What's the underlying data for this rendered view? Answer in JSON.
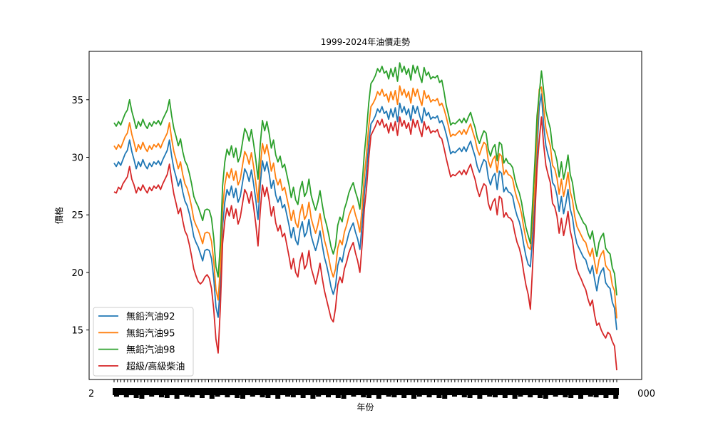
{
  "chart_data": {
    "type": "line",
    "title": "1999-2024年油價走勢",
    "xlabel": "年份",
    "ylabel": "價格",
    "ylim": [
      10.7,
      39.2
    ],
    "yticks": [
      15,
      20,
      25,
      30,
      35
    ],
    "x_tick_edge_labels": [
      "2",
      "000"
    ],
    "x_tick_count": 150,
    "legend_position": "lower-left",
    "grid": false,
    "series": [
      {
        "name": "無鉛汽油92",
        "color": "#1f77b4",
        "values": [
          29.5,
          29.2,
          29.6,
          29.3,
          29.8,
          30.3,
          30.6,
          31.5,
          30.5,
          29.8,
          29.0,
          29.6,
          29.2,
          29.8,
          29.3,
          29.0,
          29.5,
          29.2,
          29.6,
          29.4,
          29.7,
          29.3,
          29.8,
          30.2,
          30.6,
          31.5,
          30.1,
          29.0,
          28.3,
          27.5,
          28.1,
          27.0,
          26.2,
          25.8,
          25.1,
          24.2,
          23.1,
          22.6,
          22.2,
          21.6,
          21.0,
          21.9,
          22.0,
          21.9,
          21.2,
          19.5,
          17.0,
          16.1,
          19.0,
          24.0,
          26.1,
          27.2,
          26.7,
          27.5,
          26.5,
          27.3,
          26.1,
          26.6,
          27.8,
          29.0,
          28.6,
          27.9,
          28.9,
          27.7,
          26.3,
          24.6,
          27.6,
          29.7,
          28.8,
          29.6,
          28.6,
          27.3,
          28.0,
          26.7,
          26.1,
          26.6,
          25.6,
          25.9,
          25.0,
          24.1,
          23.0,
          23.9,
          22.8,
          22.4,
          23.7,
          24.4,
          23.1,
          23.5,
          24.6,
          23.2,
          22.5,
          21.9,
          22.6,
          23.6,
          22.4,
          21.3,
          20.6,
          19.7,
          18.7,
          18.1,
          18.8,
          20.6,
          21.3,
          20.9,
          22.0,
          22.6,
          23.4,
          23.9,
          24.3,
          23.5,
          22.9,
          22.0,
          24.1,
          26.8,
          28.8,
          31.2,
          32.9,
          33.2,
          33.6,
          34.2,
          33.9,
          34.4,
          33.8,
          34.0,
          33.3,
          34.2,
          33.5,
          34.3,
          33.1,
          34.7,
          33.9,
          34.4,
          33.7,
          34.2,
          33.2,
          34.5,
          33.8,
          34.4,
          33.6,
          33.0,
          34.3,
          33.6,
          33.9,
          33.3,
          33.5,
          33.4,
          33.6,
          33.0,
          33.2,
          32.7,
          32.0,
          31.2,
          30.3,
          30.5,
          30.4,
          30.6,
          30.8,
          30.5,
          30.9,
          30.5,
          31.0,
          31.4,
          30.7,
          30.1,
          29.2,
          28.7,
          29.3,
          29.8,
          29.6,
          28.2,
          27.6,
          28.3,
          28.6,
          27.2,
          28.8,
          28.6,
          27.0,
          27.4,
          27.0,
          26.9,
          26.6,
          25.6,
          24.9,
          24.4,
          23.6,
          22.4,
          21.4,
          20.7,
          20.5,
          23.0,
          26.0,
          30.6,
          34.4,
          35.5,
          32.8,
          31.0,
          30.2,
          29.5,
          27.8,
          27.5,
          26.7,
          25.3,
          26.6,
          25.1,
          26.0,
          27.2,
          25.5,
          24.8,
          23.4,
          22.5,
          22.1,
          21.7,
          21.3,
          21.1,
          20.4,
          19.9,
          20.6,
          19.4,
          18.4,
          19.6,
          20.1,
          20.4,
          19.1,
          18.8,
          18.6,
          17.4,
          16.9,
          15.0
        ]
      },
      {
        "name": "無鉛汽油95",
        "color": "#ff7f0e",
        "values": [
          31.0,
          30.7,
          31.1,
          30.8,
          31.3,
          31.8,
          32.1,
          33.0,
          32.0,
          31.3,
          30.5,
          31.1,
          30.7,
          31.3,
          30.8,
          30.5,
          31.0,
          30.7,
          31.1,
          30.9,
          31.2,
          30.8,
          31.3,
          31.7,
          32.1,
          33.0,
          31.6,
          30.5,
          29.8,
          29.0,
          29.6,
          28.5,
          27.7,
          27.3,
          26.6,
          25.7,
          24.6,
          24.1,
          23.7,
          23.1,
          22.5,
          23.4,
          23.5,
          23.4,
          22.7,
          21.0,
          18.5,
          17.6,
          20.5,
          25.5,
          27.6,
          28.7,
          28.2,
          29.0,
          28.0,
          28.8,
          27.6,
          28.1,
          29.3,
          30.5,
          30.1,
          29.4,
          30.4,
          29.2,
          27.8,
          26.1,
          29.1,
          31.2,
          30.3,
          31.1,
          30.1,
          28.8,
          29.5,
          28.2,
          27.6,
          28.1,
          27.1,
          27.4,
          26.5,
          25.6,
          24.5,
          25.4,
          24.3,
          23.9,
          25.2,
          25.9,
          24.6,
          25.0,
          26.1,
          24.7,
          24.0,
          23.4,
          24.1,
          25.1,
          23.9,
          22.8,
          22.1,
          21.2,
          20.2,
          19.6,
          20.3,
          22.1,
          22.8,
          22.4,
          23.5,
          24.1,
          24.9,
          25.4,
          25.8,
          25.0,
          24.4,
          23.5,
          25.6,
          28.3,
          30.3,
          32.7,
          34.4,
          34.7,
          35.1,
          35.7,
          35.4,
          35.9,
          35.3,
          35.5,
          34.8,
          35.7,
          35.0,
          35.8,
          34.6,
          36.2,
          35.4,
          35.9,
          35.2,
          35.7,
          34.7,
          36.0,
          35.3,
          35.9,
          35.1,
          34.5,
          35.8,
          35.1,
          35.4,
          34.8,
          35.0,
          34.9,
          35.1,
          34.5,
          34.7,
          34.2,
          33.5,
          32.7,
          31.8,
          32.0,
          31.9,
          32.1,
          32.3,
          32.0,
          32.4,
          32.0,
          32.5,
          32.9,
          32.2,
          31.6,
          30.7,
          30.2,
          30.8,
          31.3,
          31.1,
          29.7,
          29.1,
          29.8,
          30.1,
          28.7,
          30.3,
          30.1,
          28.5,
          28.9,
          28.5,
          28.4,
          28.1,
          27.1,
          26.4,
          25.9,
          25.1,
          23.9,
          22.9,
          22.2,
          22.0,
          24.5,
          27.5,
          32.1,
          35.9,
          36.1,
          34.3,
          32.5,
          31.7,
          31.0,
          29.3,
          29.0,
          28.2,
          26.8,
          28.1,
          26.6,
          27.5,
          28.7,
          27.0,
          26.3,
          24.9,
          24.0,
          23.6,
          23.2,
          22.8,
          22.6,
          21.9,
          21.4,
          22.1,
          20.9,
          19.9,
          21.1,
          21.6,
          21.9,
          20.6,
          20.3,
          20.1,
          18.9,
          18.4,
          16.0
        ]
      },
      {
        "name": "無鉛汽油98",
        "color": "#2ca02c",
        "values": [
          33.0,
          32.7,
          33.1,
          32.8,
          33.3,
          33.8,
          34.1,
          35.0,
          34.0,
          33.3,
          32.5,
          33.1,
          32.7,
          33.3,
          32.8,
          32.5,
          33.0,
          32.7,
          33.1,
          32.9,
          33.2,
          32.8,
          33.3,
          33.7,
          34.1,
          35.0,
          33.6,
          32.5,
          31.8,
          31.0,
          31.6,
          30.5,
          29.7,
          29.3,
          28.6,
          27.7,
          26.6,
          26.1,
          25.7,
          25.1,
          24.5,
          25.4,
          25.5,
          25.4,
          24.7,
          23.0,
          20.5,
          19.6,
          22.5,
          27.5,
          29.6,
          30.7,
          30.2,
          31.0,
          30.0,
          30.8,
          29.6,
          30.1,
          31.3,
          32.5,
          32.1,
          31.4,
          32.4,
          31.2,
          29.8,
          28.1,
          31.1,
          33.2,
          32.3,
          33.1,
          32.1,
          30.8,
          31.5,
          30.2,
          29.6,
          30.1,
          29.1,
          29.4,
          28.5,
          27.6,
          26.5,
          27.4,
          26.3,
          25.9,
          27.2,
          27.9,
          26.6,
          27.0,
          28.1,
          26.7,
          26.0,
          25.4,
          26.1,
          27.1,
          25.9,
          24.8,
          24.1,
          23.2,
          22.2,
          21.6,
          22.3,
          24.1,
          24.8,
          24.4,
          25.5,
          26.1,
          26.9,
          27.4,
          27.8,
          27.0,
          26.4,
          25.5,
          27.6,
          30.3,
          32.3,
          34.7,
          36.4,
          36.7,
          37.1,
          37.7,
          37.4,
          37.9,
          37.3,
          37.5,
          36.8,
          37.7,
          37.0,
          37.8,
          36.6,
          38.2,
          37.4,
          37.9,
          37.2,
          37.7,
          36.7,
          38.0,
          37.3,
          37.9,
          37.1,
          36.5,
          37.8,
          37.1,
          37.4,
          36.8,
          37.0,
          36.9,
          37.1,
          36.5,
          36.7,
          35.7,
          34.5,
          33.7,
          32.8,
          33.0,
          32.9,
          33.1,
          33.3,
          33.0,
          33.4,
          33.0,
          33.5,
          33.9,
          33.2,
          32.6,
          31.7,
          31.2,
          31.8,
          32.3,
          32.1,
          30.7,
          30.1,
          30.8,
          31.1,
          29.7,
          31.3,
          31.1,
          29.5,
          29.9,
          29.5,
          29.4,
          29.1,
          28.1,
          27.4,
          26.9,
          26.1,
          24.9,
          23.9,
          23.2,
          22.5,
          26.0,
          29.5,
          33.6,
          35.5,
          37.5,
          35.8,
          34.0,
          33.2,
          32.5,
          30.8,
          30.5,
          29.7,
          28.3,
          29.6,
          28.1,
          29.0,
          30.2,
          28.5,
          27.8,
          26.4,
          25.5,
          25.1,
          24.7,
          24.3,
          24.1,
          23.4,
          22.9,
          23.6,
          22.4,
          21.4,
          22.6,
          23.1,
          23.4,
          22.1,
          21.8,
          21.6,
          20.4,
          19.9,
          18.0
        ]
      },
      {
        "name": "超級/高級柴油",
        "color": "#d62728",
        "values": [
          27.0,
          26.9,
          27.4,
          27.2,
          27.7,
          28.0,
          28.3,
          29.2,
          28.1,
          27.6,
          26.9,
          27.4,
          27.1,
          27.6,
          27.2,
          26.9,
          27.4,
          27.1,
          27.5,
          27.3,
          27.6,
          27.2,
          27.7,
          28.1,
          28.5,
          29.4,
          28.0,
          26.8,
          26.0,
          25.1,
          25.6,
          24.5,
          23.6,
          23.2,
          22.4,
          21.4,
          20.3,
          19.7,
          19.2,
          19.0,
          19.2,
          19.6,
          19.8,
          19.5,
          18.6,
          16.8,
          14.2,
          13.0,
          17.0,
          22.5,
          24.5,
          25.6,
          24.9,
          25.8,
          24.7,
          25.5,
          24.2,
          24.8,
          26.0,
          27.2,
          26.8,
          26.0,
          27.0,
          25.7,
          24.2,
          22.3,
          25.3,
          27.6,
          26.6,
          27.4,
          26.3,
          24.9,
          25.7,
          24.3,
          23.6,
          24.1,
          23.1,
          23.4,
          22.4,
          21.4,
          20.3,
          21.2,
          20.0,
          19.6,
          21.0,
          21.7,
          20.3,
          20.7,
          21.9,
          20.4,
          19.7,
          19.0,
          19.8,
          20.8,
          19.5,
          18.4,
          17.6,
          16.8,
          16.0,
          15.7,
          16.9,
          18.9,
          19.6,
          19.1,
          20.3,
          20.9,
          21.7,
          22.2,
          22.6,
          21.7,
          21.0,
          20.0,
          22.4,
          25.5,
          27.3,
          29.9,
          31.9,
          32.3,
          32.7,
          33.2,
          32.8,
          33.3,
          32.6,
          32.9,
          32.1,
          33.0,
          32.3,
          33.1,
          31.9,
          33.5,
          32.7,
          33.2,
          32.5,
          33.0,
          32.0,
          33.3,
          32.6,
          33.2,
          32.4,
          31.8,
          33.1,
          32.4,
          32.7,
          32.1,
          32.3,
          32.2,
          32.4,
          31.8,
          31.6,
          30.8,
          29.9,
          29.1,
          28.3,
          28.5,
          28.4,
          28.6,
          28.8,
          28.5,
          28.9,
          28.5,
          29.0,
          29.4,
          28.7,
          28.1,
          27.2,
          26.6,
          27.2,
          27.7,
          27.5,
          26.0,
          25.4,
          26.1,
          26.4,
          25.0,
          26.6,
          26.4,
          24.8,
          25.2,
          24.8,
          24.7,
          24.4,
          23.4,
          22.6,
          22.1,
          21.3,
          20.0,
          18.9,
          18.1,
          16.8,
          20.5,
          24.8,
          29.0,
          31.5,
          33.5,
          31.1,
          29.3,
          28.5,
          27.8,
          26.0,
          25.7,
          24.9,
          23.4,
          24.7,
          23.2,
          24.1,
          25.3,
          23.6,
          22.8,
          21.3,
          20.3,
          19.8,
          19.4,
          18.9,
          18.5,
          17.7,
          17.1,
          17.6,
          16.3,
          15.4,
          15.6,
          15.0,
          14.6,
          14.3,
          14.8,
          14.6,
          14.0,
          13.6,
          11.5
        ]
      }
    ]
  }
}
